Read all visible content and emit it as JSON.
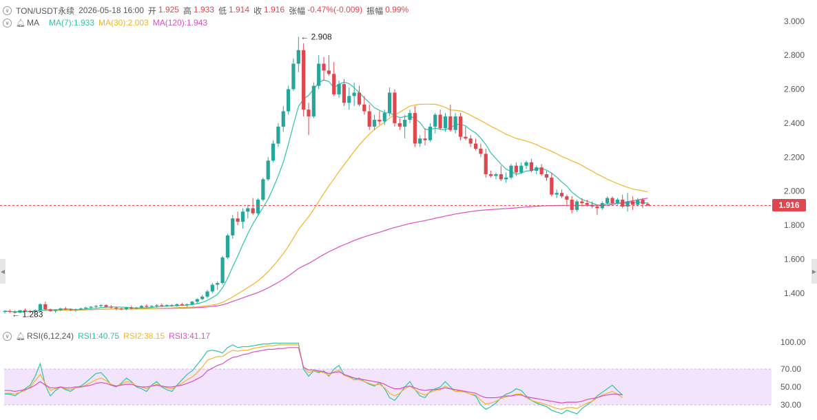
{
  "header": {
    "symbol": "TON/USDT永续",
    "datetime": "2026-05-18 16:00",
    "open_label": "开",
    "open": "1.925",
    "high_label": "高",
    "high": "1.933",
    "low_label": "低",
    "low": "1.914",
    "close_label": "收",
    "close": "1.916",
    "change_label": "张幅",
    "change": "-0.47%(-0.009)",
    "amp_label": "振幅",
    "amp": "0.99%"
  },
  "ma_legend": {
    "title": "MA",
    "ma7": "MA(7):1.933",
    "ma30": "MA(30):2.003",
    "ma120": "MA(120):1.943"
  },
  "rsi_legend": {
    "title": "RSI(6,12,24)",
    "rsi1": "RSI1:40.75",
    "rsi2": "RSI2:38.15",
    "rsi3": "RSI3:41.17"
  },
  "price_tag": "1.916",
  "colors": {
    "up": "#26a69a",
    "down": "#e0464e",
    "ma7": "#2bc4a6",
    "ma30": "#f0b429",
    "ma120": "#d94fc1",
    "rsi_band": "#f1e4fb"
  },
  "chart_data": [
    {
      "type": "candlestick",
      "title": "TON/USDT永续",
      "y_ticks": [
        "3.000",
        "2.800",
        "2.600",
        "2.400",
        "2.200",
        "2.000",
        "1.800",
        "1.600",
        "1.400"
      ],
      "ylim": [
        1.2,
        3.05
      ],
      "current_price": 1.916,
      "annotations": [
        {
          "text": "2.908",
          "value": 2.908
        },
        {
          "text": "1.283",
          "value": 1.283
        }
      ],
      "ohlc": [
        [
          1.29,
          1.3,
          1.28,
          1.295
        ],
        [
          1.295,
          1.305,
          1.285,
          1.29
        ],
        [
          1.29,
          1.3,
          1.28,
          1.285
        ],
        [
          1.285,
          1.3,
          1.283,
          1.3
        ],
        [
          1.3,
          1.31,
          1.29,
          1.295
        ],
        [
          1.295,
          1.3,
          1.285,
          1.29
        ],
        [
          1.29,
          1.305,
          1.285,
          1.3
        ],
        [
          1.3,
          1.34,
          1.295,
          1.335
        ],
        [
          1.335,
          1.35,
          1.3,
          1.305
        ],
        [
          1.305,
          1.31,
          1.29,
          1.295
        ],
        [
          1.295,
          1.305,
          1.285,
          1.3
        ],
        [
          1.3,
          1.315,
          1.295,
          1.31
        ],
        [
          1.31,
          1.32,
          1.3,
          1.305
        ],
        [
          1.305,
          1.31,
          1.295,
          1.3
        ],
        [
          1.3,
          1.31,
          1.29,
          1.305
        ],
        [
          1.305,
          1.315,
          1.3,
          1.31
        ],
        [
          1.31,
          1.32,
          1.305,
          1.315
        ],
        [
          1.315,
          1.325,
          1.305,
          1.32
        ],
        [
          1.32,
          1.33,
          1.31,
          1.325
        ],
        [
          1.325,
          1.335,
          1.315,
          1.33
        ],
        [
          1.33,
          1.335,
          1.315,
          1.32
        ],
        [
          1.32,
          1.33,
          1.31,
          1.315
        ],
        [
          1.315,
          1.32,
          1.3,
          1.31
        ],
        [
          1.31,
          1.315,
          1.3,
          1.305
        ],
        [
          1.305,
          1.32,
          1.3,
          1.315
        ],
        [
          1.315,
          1.325,
          1.305,
          1.31
        ],
        [
          1.31,
          1.32,
          1.305,
          1.315
        ],
        [
          1.315,
          1.33,
          1.31,
          1.325
        ],
        [
          1.325,
          1.335,
          1.315,
          1.32
        ],
        [
          1.32,
          1.33,
          1.315,
          1.325
        ],
        [
          1.325,
          1.335,
          1.315,
          1.33
        ],
        [
          1.33,
          1.34,
          1.32,
          1.325
        ],
        [
          1.325,
          1.335,
          1.32,
          1.33
        ],
        [
          1.33,
          1.335,
          1.32,
          1.325
        ],
        [
          1.325,
          1.34,
          1.32,
          1.335
        ],
        [
          1.335,
          1.345,
          1.325,
          1.33
        ],
        [
          1.33,
          1.34,
          1.32,
          1.335
        ],
        [
          1.335,
          1.355,
          1.33,
          1.35
        ],
        [
          1.35,
          1.37,
          1.34,
          1.365
        ],
        [
          1.365,
          1.39,
          1.36,
          1.38
        ],
        [
          1.38,
          1.42,
          1.37,
          1.41
        ],
        [
          1.41,
          1.46,
          1.4,
          1.45
        ],
        [
          1.45,
          1.47,
          1.42,
          1.46
        ],
        [
          1.46,
          1.62,
          1.45,
          1.61
        ],
        [
          1.61,
          1.75,
          1.6,
          1.74
        ],
        [
          1.74,
          1.86,
          1.72,
          1.84
        ],
        [
          1.84,
          1.88,
          1.8,
          1.82
        ],
        [
          1.82,
          1.9,
          1.78,
          1.88
        ],
        [
          1.88,
          1.92,
          1.84,
          1.9
        ],
        [
          1.9,
          1.96,
          1.86,
          1.87
        ],
        [
          1.87,
          1.96,
          1.86,
          1.95
        ],
        [
          1.95,
          2.08,
          1.94,
          2.07
        ],
        [
          2.07,
          2.2,
          2.06,
          2.18
        ],
        [
          2.18,
          2.3,
          2.17,
          2.28
        ],
        [
          2.28,
          2.4,
          2.26,
          2.38
        ],
        [
          2.38,
          2.5,
          2.35,
          2.47
        ],
        [
          2.47,
          2.62,
          2.45,
          2.6
        ],
        [
          2.6,
          2.78,
          2.59,
          2.75
        ],
        [
          2.75,
          2.908,
          2.7,
          2.83
        ],
        [
          2.83,
          2.87,
          2.44,
          2.48
        ],
        [
          2.48,
          2.52,
          2.33,
          2.44
        ],
        [
          2.44,
          2.64,
          2.43,
          2.62
        ],
        [
          2.62,
          2.8,
          2.6,
          2.75
        ],
        [
          2.75,
          2.79,
          2.65,
          2.71
        ],
        [
          2.71,
          2.8,
          2.68,
          2.69
        ],
        [
          2.69,
          2.76,
          2.56,
          2.57
        ],
        [
          2.57,
          2.65,
          2.55,
          2.63
        ],
        [
          2.63,
          2.66,
          2.5,
          2.52
        ],
        [
          2.52,
          2.61,
          2.48,
          2.56
        ],
        [
          2.56,
          2.64,
          2.5,
          2.58
        ],
        [
          2.58,
          2.62,
          2.5,
          2.51
        ],
        [
          2.51,
          2.56,
          2.45,
          2.47
        ],
        [
          2.47,
          2.51,
          2.36,
          2.38
        ],
        [
          2.38,
          2.45,
          2.36,
          2.42
        ],
        [
          2.42,
          2.47,
          2.39,
          2.41
        ],
        [
          2.41,
          2.48,
          2.39,
          2.46
        ],
        [
          2.46,
          2.61,
          2.44,
          2.58
        ],
        [
          2.58,
          2.6,
          2.38,
          2.4
        ],
        [
          2.4,
          2.43,
          2.36,
          2.38
        ],
        [
          2.38,
          2.45,
          2.31,
          2.42
        ],
        [
          2.42,
          2.48,
          2.4,
          2.46
        ],
        [
          2.46,
          2.5,
          2.26,
          2.28
        ],
        [
          2.28,
          2.33,
          2.26,
          2.31
        ],
        [
          2.31,
          2.37,
          2.27,
          2.3
        ],
        [
          2.3,
          2.4,
          2.29,
          2.38
        ],
        [
          2.38,
          2.46,
          2.34,
          2.45
        ],
        [
          2.45,
          2.48,
          2.36,
          2.37
        ],
        [
          2.37,
          2.46,
          2.35,
          2.44
        ],
        [
          2.44,
          2.51,
          2.35,
          2.36
        ],
        [
          2.36,
          2.46,
          2.34,
          2.44
        ],
        [
          2.44,
          2.46,
          2.3,
          2.32
        ],
        [
          2.32,
          2.38,
          2.3,
          2.31
        ],
        [
          2.31,
          2.33,
          2.26,
          2.28
        ],
        [
          2.28,
          2.31,
          2.24,
          2.25
        ],
        [
          2.25,
          2.28,
          2.2,
          2.22
        ],
        [
          2.22,
          2.25,
          2.08,
          2.1
        ],
        [
          2.1,
          2.12,
          2.08,
          2.09
        ],
        [
          2.09,
          2.11,
          2.07,
          2.1
        ],
        [
          2.1,
          2.15,
          2.06,
          2.07
        ],
        [
          2.07,
          2.11,
          2.05,
          2.08
        ],
        [
          2.08,
          2.16,
          2.07,
          2.15
        ],
        [
          2.15,
          2.17,
          2.09,
          2.11
        ],
        [
          2.11,
          2.17,
          2.1,
          2.15
        ],
        [
          2.15,
          2.18,
          2.13,
          2.17
        ],
        [
          2.17,
          2.19,
          2.11,
          2.12
        ],
        [
          2.12,
          2.15,
          2.1,
          2.14
        ],
        [
          2.14,
          2.16,
          2.09,
          2.1
        ],
        [
          2.1,
          2.12,
          2.06,
          2.08
        ],
        [
          2.08,
          2.11,
          1.97,
          1.98
        ],
        [
          1.98,
          2.01,
          1.96,
          1.99
        ],
        [
          1.99,
          2.01,
          1.96,
          1.97
        ],
        [
          1.97,
          1.98,
          1.92,
          1.95
        ],
        [
          1.95,
          1.97,
          1.87,
          1.89
        ],
        [
          1.89,
          1.95,
          1.88,
          1.94
        ],
        [
          1.94,
          1.96,
          1.91,
          1.93
        ],
        [
          1.93,
          1.95,
          1.91,
          1.92
        ],
        [
          1.92,
          1.94,
          1.9,
          1.91
        ],
        [
          1.91,
          1.92,
          1.86,
          1.9
        ],
        [
          1.9,
          1.94,
          1.89,
          1.93
        ],
        [
          1.93,
          1.97,
          1.92,
          1.96
        ],
        [
          1.96,
          1.97,
          1.92,
          1.93
        ],
        [
          1.93,
          1.96,
          1.92,
          1.95
        ],
        [
          1.95,
          1.98,
          1.9,
          1.91
        ],
        [
          1.91,
          1.99,
          1.88,
          1.94
        ],
        [
          1.94,
          1.97,
          1.89,
          1.92
        ],
        [
          1.92,
          1.96,
          1.91,
          1.95
        ],
        [
          1.95,
          1.96,
          1.9,
          1.925
        ],
        [
          1.925,
          1.933,
          1.914,
          1.916
        ]
      ]
    },
    {
      "type": "line",
      "title": "RSI(6,12,24)",
      "y_ticks": [
        "100.00",
        "70.00",
        "50.00",
        "30.00"
      ],
      "ylim": [
        18,
        102
      ],
      "band": [
        30,
        70
      ],
      "series": [
        {
          "name": "RSI1",
          "values": [
            42,
            42,
            40,
            44,
            48,
            52,
            62,
            76,
            52,
            40,
            46,
            50,
            47,
            45,
            49,
            51,
            55,
            60,
            65,
            66,
            60,
            52,
            50,
            54,
            60,
            56,
            50,
            48,
            45,
            52,
            56,
            50,
            47,
            45,
            52,
            58,
            64,
            68,
            75,
            82,
            90,
            91,
            90,
            88,
            94,
            97,
            94,
            95,
            95,
            96,
            97,
            98,
            98,
            99,
            99,
            99,
            99,
            99,
            99,
            70,
            62,
            68,
            66,
            68,
            62,
            70,
            74,
            64,
            62,
            58,
            60,
            56,
            53,
            51,
            55,
            48,
            38,
            35,
            42,
            50,
            56,
            47,
            40,
            38,
            45,
            48,
            50,
            56,
            50,
            45,
            46,
            44,
            42,
            40,
            30,
            25,
            28,
            32,
            38,
            42,
            44,
            48,
            46,
            40,
            35,
            32,
            30,
            28,
            24,
            22,
            20,
            24,
            22,
            20,
            26,
            30,
            34,
            40,
            44,
            48,
            52,
            46,
            41
          ]
        },
        {
          "name": "RSI2",
          "values": [
            43,
            43,
            42,
            44,
            46,
            50,
            57,
            64,
            54,
            46,
            48,
            50,
            48,
            47,
            49,
            50,
            52,
            55,
            58,
            60,
            57,
            53,
            51,
            53,
            56,
            55,
            51,
            50,
            48,
            51,
            53,
            51,
            49,
            48,
            51,
            54,
            58,
            61,
            66,
            72,
            80,
            82,
            84,
            84,
            88,
            91,
            90,
            91,
            91,
            93,
            94,
            95,
            96,
            96,
            97,
            97,
            97,
            97,
            97,
            72,
            66,
            68,
            67,
            66,
            63,
            67,
            69,
            63,
            61,
            58,
            58,
            56,
            54,
            52,
            53,
            49,
            43,
            40,
            43,
            48,
            51,
            47,
            43,
            41,
            44,
            46,
            47,
            51,
            48,
            45,
            45,
            44,
            42,
            41,
            35,
            31,
            32,
            34,
            37,
            39,
            40,
            42,
            42,
            38,
            35,
            33,
            32,
            30,
            28,
            26,
            25,
            27,
            27,
            26,
            29,
            32,
            34,
            38,
            41,
            43,
            45,
            42,
            38
          ]
        },
        {
          "name": "RSI3",
          "values": [
            46,
            46,
            45,
            46,
            47,
            49,
            52,
            56,
            52,
            49,
            49,
            50,
            49,
            49,
            50,
            50,
            51,
            52,
            54,
            55,
            54,
            52,
            51,
            52,
            53,
            53,
            51,
            50,
            50,
            51,
            52,
            51,
            50,
            50,
            51,
            52,
            54,
            56,
            59,
            62,
            68,
            71,
            74,
            76,
            80,
            83,
            84,
            86,
            87,
            89,
            90,
            91,
            92,
            92,
            93,
            93,
            94,
            94,
            94,
            72,
            69,
            69,
            68,
            67,
            65,
            66,
            67,
            64,
            62,
            60,
            59,
            58,
            57,
            56,
            55,
            53,
            50,
            48,
            48,
            50,
            51,
            49,
            47,
            46,
            47,
            47,
            48,
            49,
            48,
            47,
            46,
            45,
            44,
            43,
            40,
            38,
            38,
            38,
            39,
            40,
            40,
            41,
            41,
            39,
            38,
            37,
            36,
            35,
            34,
            33,
            32,
            33,
            33,
            33,
            34,
            36,
            37,
            38,
            40,
            41,
            42,
            42,
            41
          ]
        }
      ]
    }
  ]
}
